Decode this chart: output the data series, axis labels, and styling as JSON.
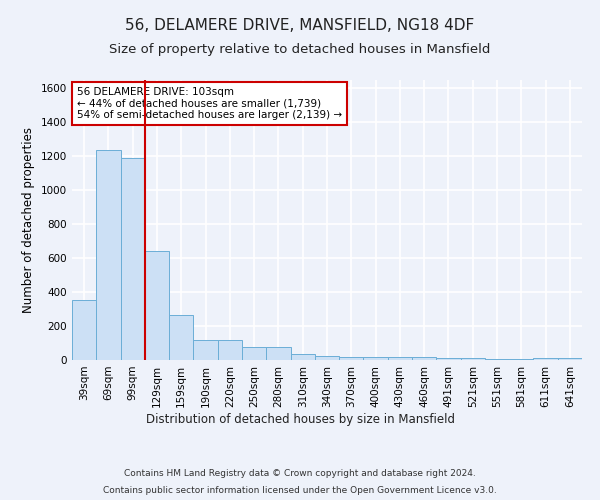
{
  "title1": "56, DELAMERE DRIVE, MANSFIELD, NG18 4DF",
  "title2": "Size of property relative to detached houses in Mansfield",
  "xlabel": "Distribution of detached houses by size in Mansfield",
  "ylabel": "Number of detached properties",
  "categories": [
    "39sqm",
    "69sqm",
    "99sqm",
    "129sqm",
    "159sqm",
    "190sqm",
    "220sqm",
    "250sqm",
    "280sqm",
    "310sqm",
    "340sqm",
    "370sqm",
    "400sqm",
    "430sqm",
    "460sqm",
    "491sqm",
    "521sqm",
    "551sqm",
    "581sqm",
    "611sqm",
    "641sqm"
  ],
  "values": [
    355,
    1240,
    1190,
    645,
    265,
    120,
    120,
    75,
    75,
    35,
    25,
    20,
    20,
    15,
    15,
    10,
    10,
    5,
    5,
    10,
    10
  ],
  "bar_color": "#cce0f5",
  "bar_edge_color": "#6baed6",
  "vline_x": 2.5,
  "vline_color": "#cc0000",
  "annotation_text": "56 DELAMERE DRIVE: 103sqm\n← 44% of detached houses are smaller (1,739)\n54% of semi-detached houses are larger (2,139) →",
  "annotation_box_color": "#cc0000",
  "ylim": [
    0,
    1650
  ],
  "yticks": [
    0,
    200,
    400,
    600,
    800,
    1000,
    1200,
    1400,
    1600
  ],
  "footer1": "Contains HM Land Registry data © Crown copyright and database right 2024.",
  "footer2": "Contains public sector information licensed under the Open Government Licence v3.0.",
  "bg_color": "#eef2fa",
  "grid_color": "#ffffff",
  "title1_fontsize": 11,
  "title2_fontsize": 9.5,
  "axis_label_fontsize": 8.5,
  "tick_fontsize": 7.5,
  "footer_fontsize": 6.5
}
